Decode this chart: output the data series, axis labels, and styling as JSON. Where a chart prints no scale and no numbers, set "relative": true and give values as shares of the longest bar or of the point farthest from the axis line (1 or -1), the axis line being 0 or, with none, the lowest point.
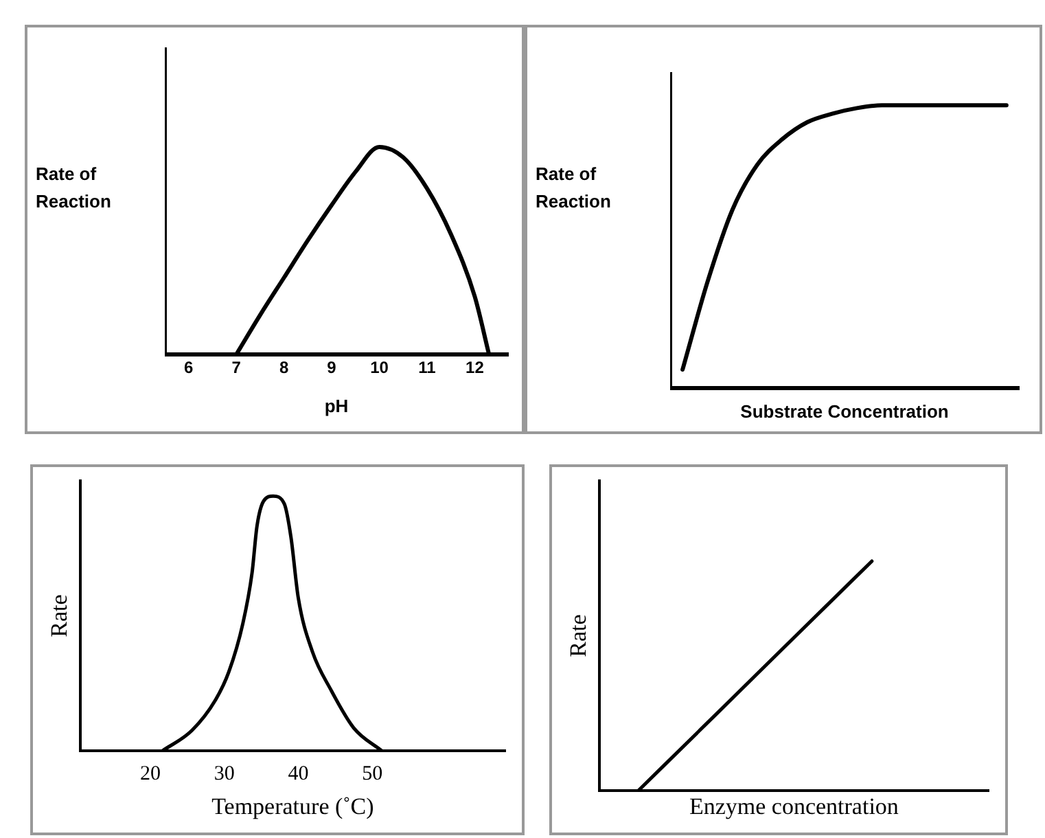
{
  "chart_data": [
    {
      "type": "line",
      "ylabel": "Rate of Reaction",
      "xlabel": "pH",
      "color": "#000000",
      "marker": "none",
      "relative": true,
      "xlim": [
        5.5,
        12.7
      ],
      "xticks": [
        6,
        7,
        8,
        9,
        10,
        11,
        12
      ],
      "x": [
        7,
        7.5,
        8,
        8.5,
        9,
        9.5,
        10,
        10.5,
        11,
        11.5,
        12,
        12.3
      ],
      "values": [
        0,
        0.19,
        0.37,
        0.55,
        0.72,
        0.88,
        1.0,
        0.95,
        0.8,
        0.58,
        0.28,
        0
      ]
    },
    {
      "type": "line",
      "ylabel": "Rate of Reaction",
      "xlabel": "Substrate Concentration",
      "color": "#000000",
      "marker": "none",
      "relative": true,
      "categories": [
        null,
        null,
        null,
        null,
        null,
        null,
        null,
        null,
        null,
        null,
        null,
        null,
        null,
        null
      ],
      "values": [
        0.065,
        0.375,
        0.63,
        0.79,
        0.88,
        0.94,
        0.97,
        0.99,
        1.0,
        1.0,
        1.0,
        1.0,
        1.0,
        1.0
      ]
    },
    {
      "type": "line",
      "ylabel": "Rate",
      "xlabel": "Temperature (˚C)",
      "color": "#000000",
      "marker": "none",
      "relative": true,
      "xlim": [
        10.5,
        68
      ],
      "xticks": [
        20,
        30,
        40,
        50
      ],
      "x": [
        21.6,
        25.6,
        28.8,
        30.6,
        32.5,
        33.75,
        34.4,
        35.3,
        36.6,
        38.1,
        39,
        40,
        41.9,
        44.4,
        47.5,
        51.3
      ],
      "values": [
        0,
        0.08,
        0.2,
        0.31,
        0.5,
        0.7,
        0.88,
        0.98,
        1.0,
        0.97,
        0.84,
        0.6,
        0.39,
        0.24,
        0.09,
        0
      ]
    },
    {
      "type": "line",
      "ylabel": "Rate",
      "xlabel": "Enzyme concentration",
      "color": "#000000",
      "marker": "none",
      "relative": true,
      "categories": [
        null,
        null,
        null,
        null,
        null
      ],
      "values": [
        0,
        0.333,
        0.667,
        1.0,
        null
      ]
    }
  ]
}
